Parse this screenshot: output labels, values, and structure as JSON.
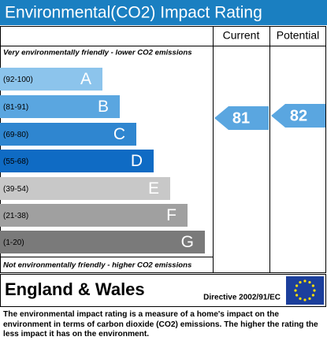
{
  "title": "Environmental(CO2) Impact Rating",
  "columns": [
    "Current",
    "Potential"
  ],
  "top_caption": "Very environmentally friendly - lower CO2 emissions",
  "bands": [
    {
      "range": "(92-100)",
      "letter": "A"
    },
    {
      "range": "(81-91)",
      "letter": "B"
    },
    {
      "range": "(69-80)",
      "letter": "C"
    },
    {
      "range": "(55-68)",
      "letter": "D"
    },
    {
      "range": "(39-54)",
      "letter": "E"
    },
    {
      "range": "(21-38)",
      "letter": "F"
    },
    {
      "range": "(1-20)",
      "letter": "G"
    }
  ],
  "current": {
    "value": 81
  },
  "potential": {
    "value": 82
  },
  "bottom_caption": "Not environmentally friendly - higher CO2 emissions",
  "footer": {
    "region": "England & Wales",
    "directive": "Directive 2002/91/EC"
  },
  "description": "The environmental impact rating is a measure of a home's impact on the environment in terms of carbon dioxide (CO2) emissions. The higher the rating the less impact it has on the environment."
}
